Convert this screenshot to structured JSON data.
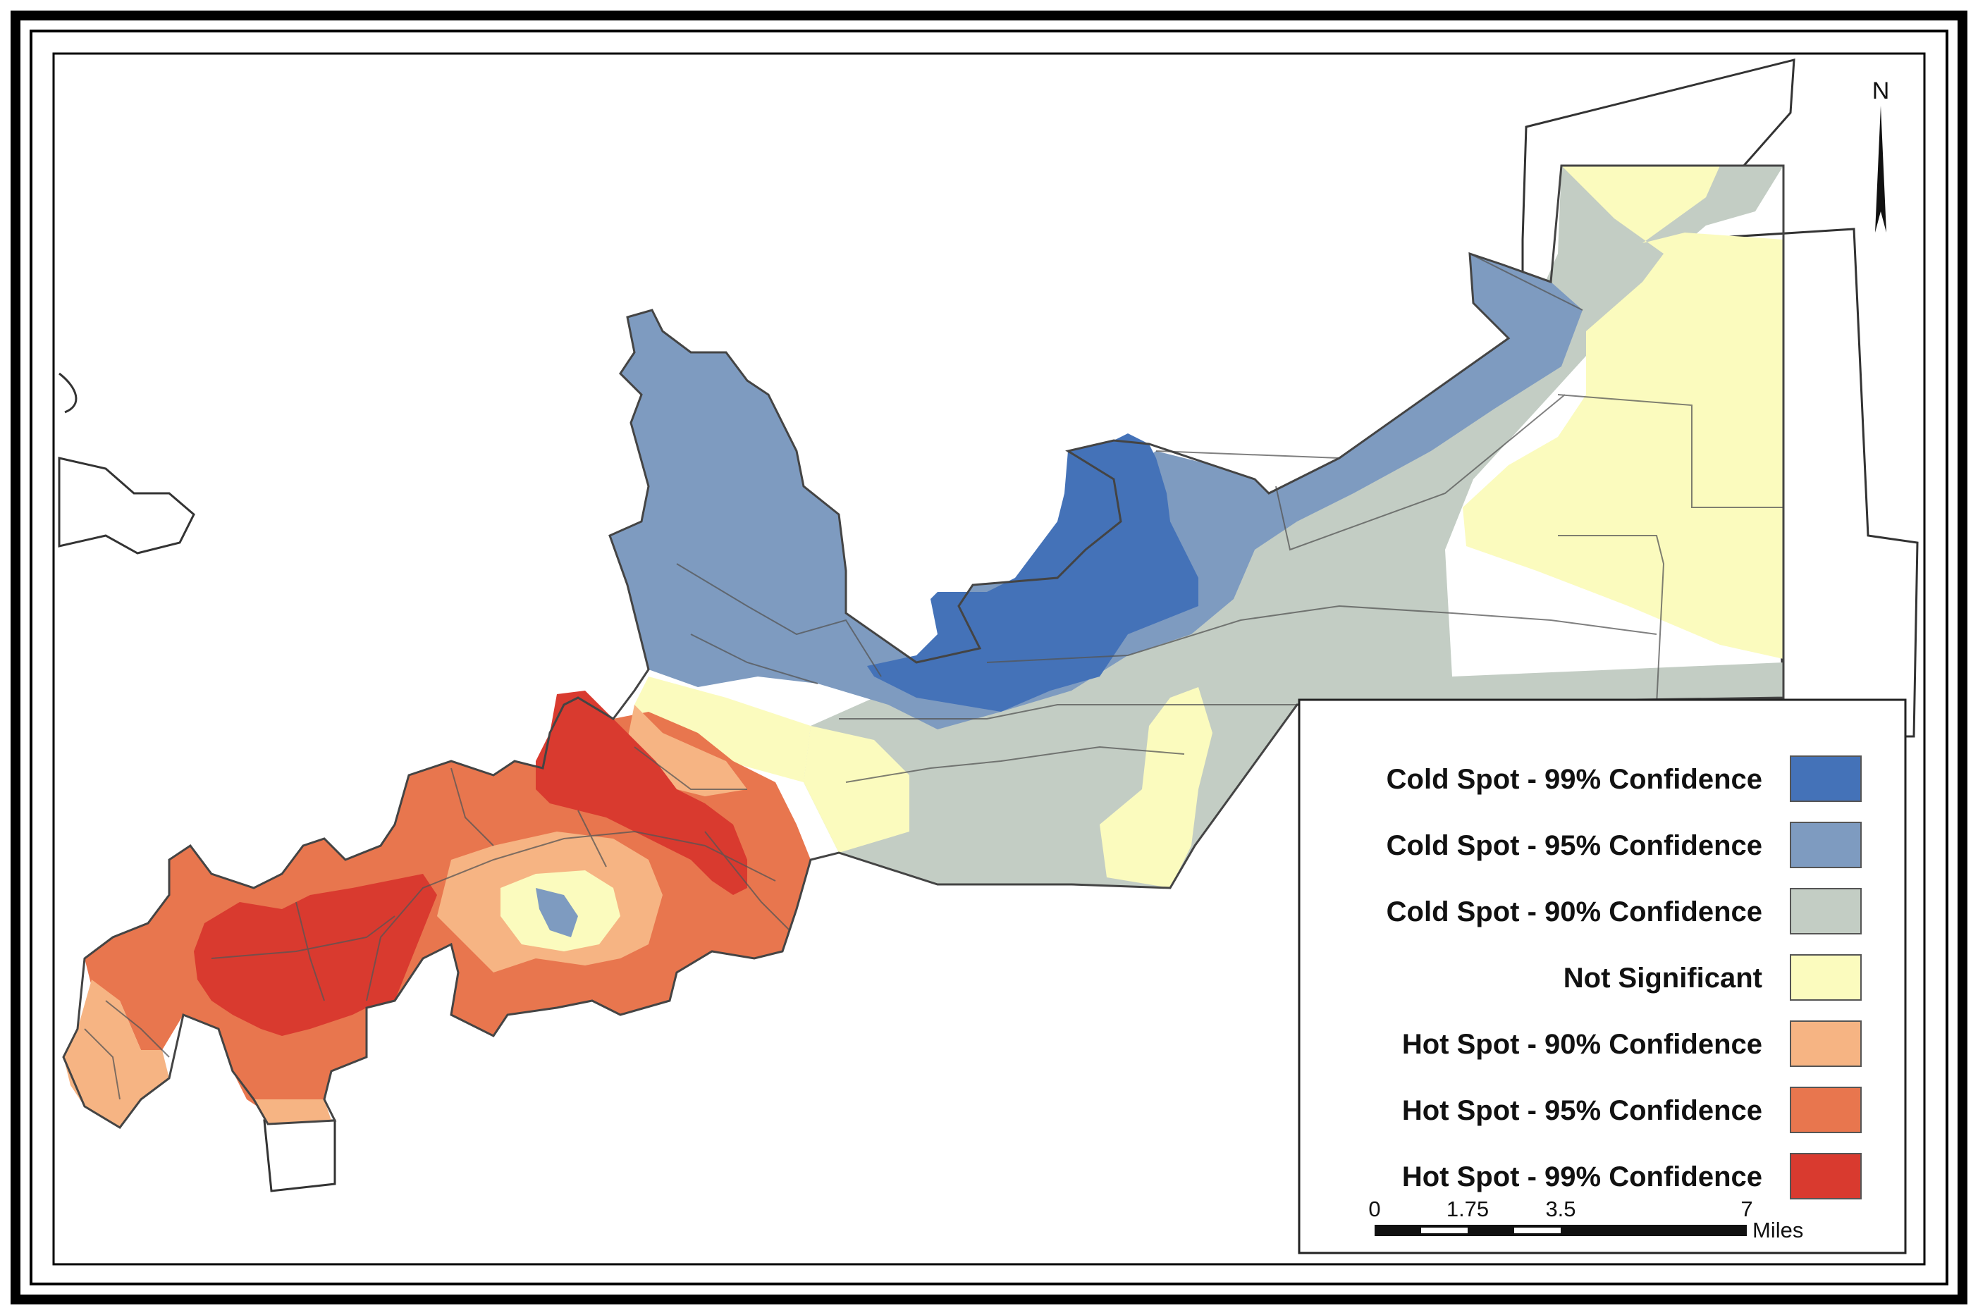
{
  "legend": {
    "items": [
      {
        "label": "Cold Spot - 99% Confidence",
        "color": "#4472b8"
      },
      {
        "label": "Cold Spot - 95% Confidence",
        "color": "#7e9bc0"
      },
      {
        "label": "Cold Spot - 90% Confidence",
        "color": "#c3cdc4"
      },
      {
        "label": "Not Significant",
        "color": "#fbfbbe"
      },
      {
        "label": "Hot Spot - 90% Confidence",
        "color": "#f6b483"
      },
      {
        "label": "Hot Spot - 95% Confidence",
        "color": "#e8764e"
      },
      {
        "label": "Hot Spot - 99% Confidence",
        "color": "#d93a2f"
      }
    ]
  },
  "scale_bar": {
    "ticks": [
      "0",
      "1.75",
      "3.5",
      "7"
    ],
    "unit": "Miles"
  },
  "north_arrow": {
    "label": "N"
  }
}
